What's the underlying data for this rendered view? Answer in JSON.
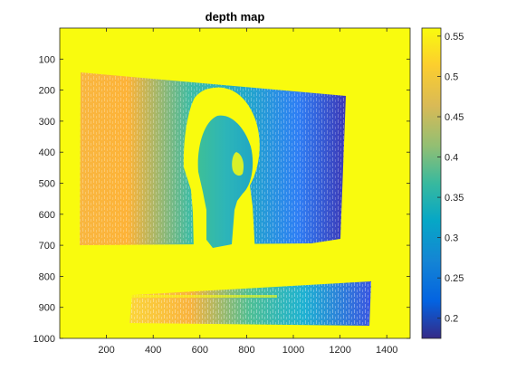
{
  "chart_data": {
    "type": "heatmap",
    "title": "depth map",
    "xlabel": "",
    "ylabel": "",
    "xlim": [
      0,
      1500
    ],
    "ylim": [
      0,
      1000
    ],
    "y_reversed": true,
    "x_ticks": [
      200,
      400,
      600,
      800,
      1000,
      1200,
      1400
    ],
    "y_ticks": [
      100,
      200,
      300,
      400,
      500,
      600,
      700,
      800,
      900,
      1000
    ],
    "colorbar": {
      "range": [
        0.175,
        0.56
      ],
      "ticks": [
        0.2,
        0.25,
        0.3,
        0.35,
        0.4,
        0.45,
        0.5,
        0.55
      ],
      "tick_labels": [
        "0.2",
        "0.25",
        "0.3",
        "0.35",
        "0.4",
        "0.45",
        "0.5",
        "0.55"
      ],
      "colormap": "parula"
    },
    "background_value": 0.56,
    "regions": [
      {
        "name": "wall panel",
        "x_from": 80,
        "x_to": 1210,
        "value_left": 0.49,
        "value_right": 0.21
      },
      {
        "name": "head bust",
        "x_from": 540,
        "x_to": 850,
        "y_from": 170,
        "y_to": 790,
        "value_range": [
          0.33,
          0.56
        ]
      },
      {
        "name": "floor strip",
        "x_from": 300,
        "x_to": 1330,
        "y_from": 820,
        "y_to": 950,
        "value_left": 0.5,
        "value_right": 0.27
      }
    ]
  },
  "axis_colors": {
    "axis": "#262626",
    "background": "#ffffff"
  }
}
